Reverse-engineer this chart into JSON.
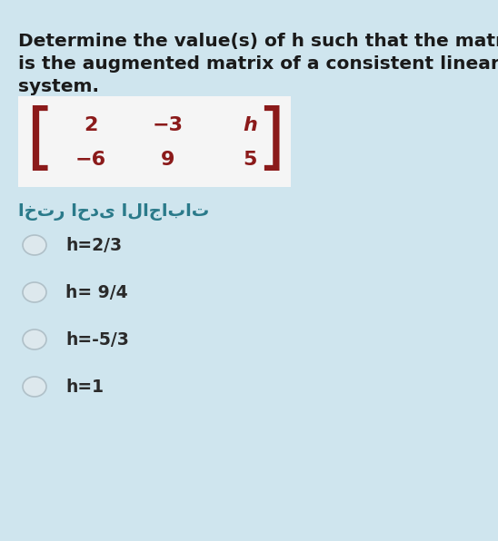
{
  "background_color": "#cfe5ee",
  "title_lines": [
    "Determine the value(s) of h such that the matrix",
    "is the augmented matrix of a consistent linear",
    "system."
  ],
  "title_color": "#1a1a1a",
  "title_fontsize": 14.5,
  "matrix_bg": "#f5f5f5",
  "matrix_row1": [
    "2",
    "−3",
    "h"
  ],
  "matrix_row2": [
    "−6",
    "9",
    "5"
  ],
  "matrix_color": "#8b1a1a",
  "arabic_text": "اختر احدى الاجابات",
  "arabic_color": "#2a7a8a",
  "arabic_fontsize": 14,
  "options": [
    "h=2/3",
    "h= 9/4",
    "h=-5/3",
    "h=1"
  ],
  "option_color": "#2a2a2a",
  "option_fontsize": 13.5,
  "radio_fill": "#dde8ed",
  "radio_edge": "#b0c0c8"
}
